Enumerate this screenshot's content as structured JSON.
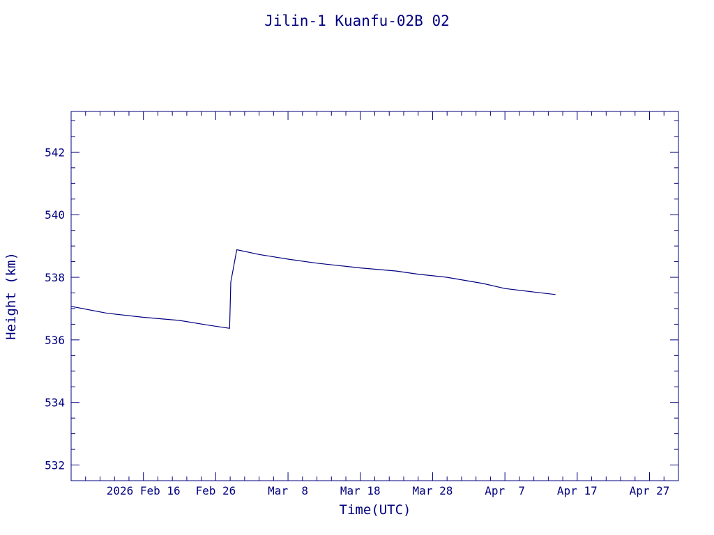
{
  "chart_data": {
    "type": "line",
    "title": "Jilin-1 Kuanfu-02B 02",
    "xlabel": "Time(UTC)",
    "ylabel": "Height (km)",
    "color": "#00007f",
    "x_axis": {
      "range": [
        "2026-02-06",
        "2026-05-01"
      ],
      "tick_dates": [
        "2026-02-06",
        "2026-02-16",
        "2026-02-26",
        "2026-03-08",
        "2026-03-18",
        "2026-03-28",
        "2026-04-07",
        "2026-04-17",
        "2026-04-27"
      ],
      "tick_labels": [
        "2026 Feb 16",
        "Feb 26",
        "Mar  8",
        "Mar 18",
        "Mar 28",
        "Apr  7",
        "Apr 17",
        "Apr 27"
      ],
      "tick_label_dates": [
        "2026-02-16",
        "2026-02-26",
        "2026-03-08",
        "2026-03-18",
        "2026-03-28",
        "2026-04-07",
        "2026-04-17",
        "2026-04-27"
      ]
    },
    "y_axis": {
      "range": [
        531.5,
        543.3
      ],
      "ticks": [
        532,
        534,
        536,
        538,
        540,
        542
      ],
      "tick_labels": [
        "532",
        "534",
        "536",
        "538",
        "540",
        "542"
      ]
    },
    "series": [
      {
        "points": [
          {
            "x": "2026-02-06T00:00",
            "y": 537.07
          },
          {
            "x": "2026-02-11T00:00",
            "y": 536.85
          },
          {
            "x": "2026-02-16T00:00",
            "y": 536.72
          },
          {
            "x": "2026-02-21T00:00",
            "y": 536.62
          },
          {
            "x": "2026-02-25T00:00",
            "y": 536.47
          },
          {
            "x": "2026-02-27T22:00",
            "y": 536.37
          },
          {
            "x": "2026-02-28T02:00",
            "y": 537.85
          },
          {
            "x": "2026-02-28T22:00",
            "y": 538.88
          },
          {
            "x": "2026-03-04T00:00",
            "y": 538.73
          },
          {
            "x": "2026-03-08T00:00",
            "y": 538.58
          },
          {
            "x": "2026-03-12T00:00",
            "y": 538.45
          },
          {
            "x": "2026-03-18T00:00",
            "y": 538.3
          },
          {
            "x": "2026-03-23T00:00",
            "y": 538.2
          },
          {
            "x": "2026-03-26T00:00",
            "y": 538.1
          },
          {
            "x": "2026-03-30T00:00",
            "y": 538.0
          },
          {
            "x": "2026-04-04T00:00",
            "y": 537.8
          },
          {
            "x": "2026-04-07T00:00",
            "y": 537.64
          },
          {
            "x": "2026-04-11T00:00",
            "y": 537.53
          },
          {
            "x": "2026-04-14T00:00",
            "y": 537.45
          }
        ]
      }
    ]
  }
}
